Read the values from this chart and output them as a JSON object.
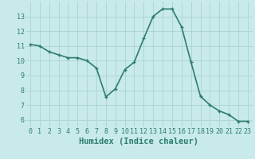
{
  "x": [
    0,
    1,
    2,
    3,
    4,
    5,
    6,
    7,
    8,
    9,
    10,
    11,
    12,
    13,
    14,
    15,
    16,
    17,
    18,
    19,
    20,
    21,
    22,
    23
  ],
  "y": [
    11.1,
    11.0,
    10.6,
    10.4,
    10.2,
    10.2,
    10.0,
    9.5,
    7.55,
    8.1,
    9.4,
    9.9,
    11.5,
    13.0,
    13.5,
    13.5,
    12.3,
    9.9,
    7.6,
    7.0,
    6.6,
    6.35,
    5.9,
    5.9
  ],
  "line_color": "#2e7d6e",
  "marker": "+",
  "marker_size": 3.5,
  "linewidth": 1.2,
  "bg_color": "#c8eaea",
  "grid_color": "#aad4d0",
  "xlabel": "Humidex (Indice chaleur)",
  "xlabel_fontsize": 7.5,
  "tick_fontsize": 6,
  "ylim": [
    5.5,
    14.0
  ],
  "xlim": [
    -0.5,
    23.5
  ],
  "yticks": [
    6,
    7,
    8,
    9,
    10,
    11,
    12,
    13
  ],
  "xticks": [
    0,
    1,
    2,
    3,
    4,
    5,
    6,
    7,
    8,
    9,
    10,
    11,
    12,
    13,
    14,
    15,
    16,
    17,
    18,
    19,
    20,
    21,
    22,
    23
  ]
}
